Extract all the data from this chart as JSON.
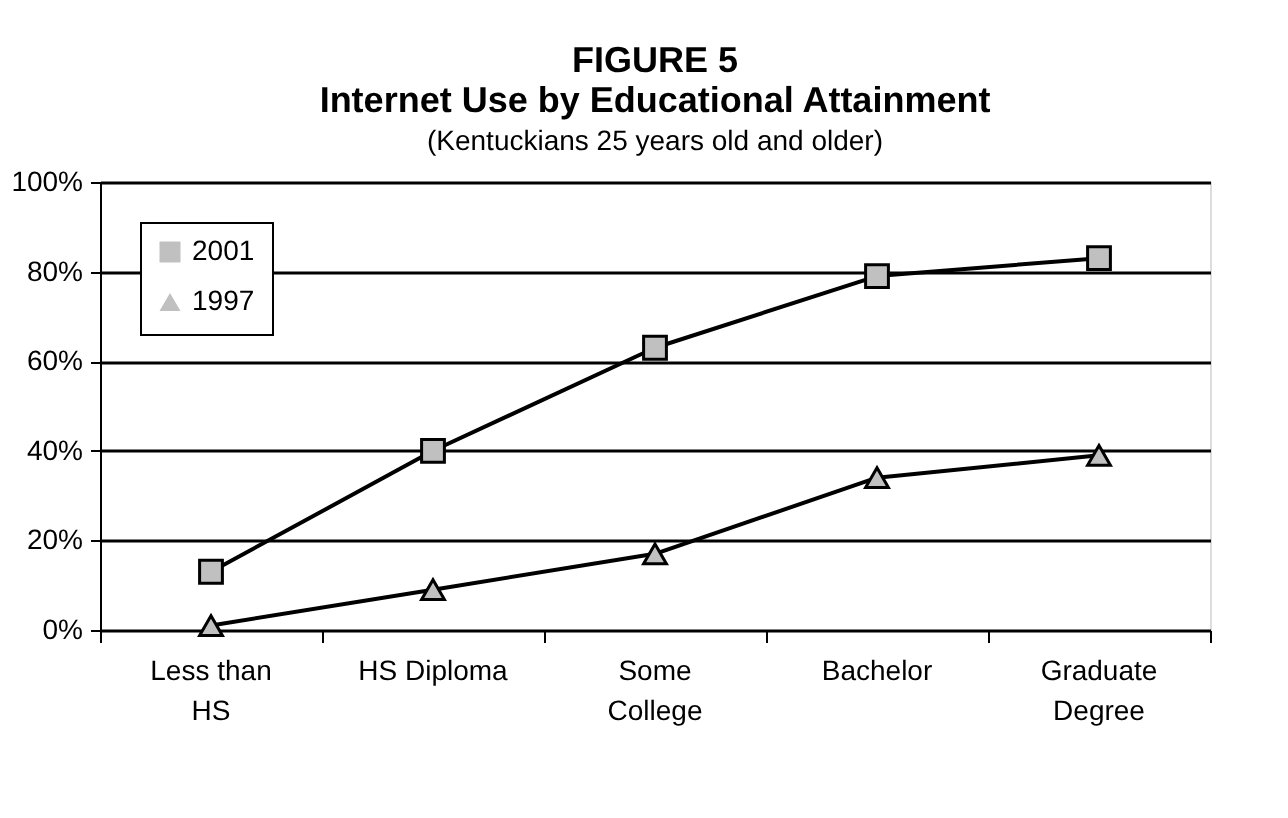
{
  "chart_data": {
    "type": "line",
    "title": "FIGURE 5\nInternet Use by Educational Attainment",
    "subtitle": "(Kentuckians 25 years old and older)",
    "categories": [
      "Less than HS",
      "HS Diploma",
      "Some College",
      "Bachelor",
      "Graduate Degree"
    ],
    "series": [
      {
        "name": "2001",
        "color": "#c0c0c0",
        "marker": "square",
        "values": [
          13,
          40,
          63,
          79,
          83
        ]
      },
      {
        "name": "1997",
        "color": "#c0c0c0",
        "marker": "triangle",
        "values": [
          1,
          9,
          17,
          34,
          39
        ]
      }
    ],
    "ylim": [
      0,
      100
    ],
    "yticks": [
      {
        "value": 0,
        "label": "0%"
      },
      {
        "value": 20,
        "label": "20%"
      },
      {
        "value": 40,
        "label": "40%"
      },
      {
        "value": 60,
        "label": "60%"
      },
      {
        "value": 80,
        "label": "80%"
      },
      {
        "value": 100,
        "label": "100%"
      }
    ],
    "grid": "y",
    "legend": "top left",
    "line_style": "solid"
  }
}
